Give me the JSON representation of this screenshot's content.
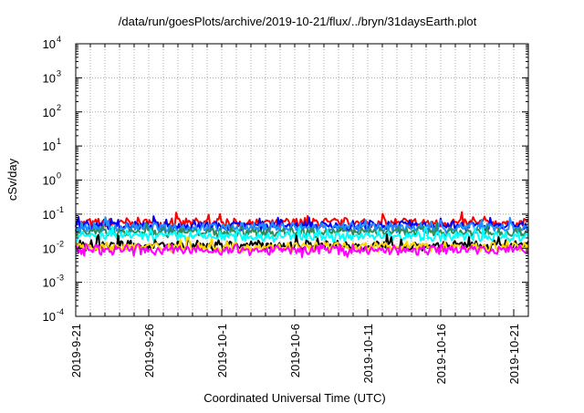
{
  "chart_data": {
    "type": "line",
    "title": "/data/run/goesPlots/archive/2019-10-21/flux/../bryn/31daysEarth.plot",
    "xlabel": "Coordinated Universal Time (UTC)",
    "ylabel": "cSv/day",
    "y_scale": "log",
    "ylim": [
      0.0001,
      10000
    ],
    "y_ticks": [
      {
        "value": 0.0001,
        "base": "10",
        "exp": "-4"
      },
      {
        "value": 0.001,
        "base": "10",
        "exp": "-3"
      },
      {
        "value": 0.01,
        "base": "10",
        "exp": "-2"
      },
      {
        "value": 0.1,
        "base": "10",
        "exp": "-1"
      },
      {
        "value": 1,
        "base": "10",
        "exp": "0"
      },
      {
        "value": 10,
        "base": "10",
        "exp": "1"
      },
      {
        "value": 100,
        "base": "10",
        "exp": "2"
      },
      {
        "value": 1000,
        "base": "10",
        "exp": "3"
      },
      {
        "value": 10000,
        "base": "10",
        "exp": "4"
      }
    ],
    "xlim": [
      "2019-09-21",
      "2019-10-22"
    ],
    "x_ticks": [
      "2019-9-21",
      "2019-9-26",
      "2019-10-1",
      "2019-10-6",
      "2019-10-11",
      "2019-10-16",
      "2019-10-21"
    ],
    "grid": true,
    "series": [
      {
        "color": "#ff0000",
        "level": 0.055
      },
      {
        "color": "#0000ff",
        "level": 0.045
      },
      {
        "color": "#1e90ff",
        "level": 0.04
      },
      {
        "color": "#2e8b57",
        "level": 0.03
      },
      {
        "color": "#00ffff",
        "level": 0.022
      },
      {
        "color": "#000000",
        "level": 0.012
      },
      {
        "color": "#ffd700",
        "level": 0.011
      },
      {
        "color": "#ff00ff",
        "level": 0.009
      }
    ]
  }
}
